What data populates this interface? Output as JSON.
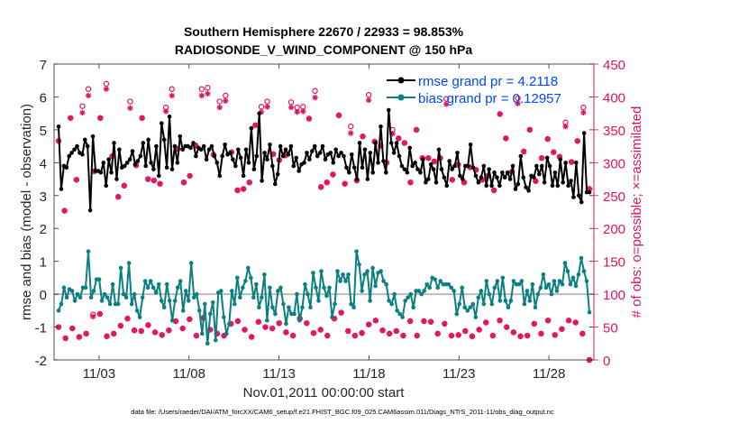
{
  "chart_data": {
    "type": "line",
    "title_line1": "Southern Hemisphere 22670 / 22933 = 98.853%",
    "title_line2": "RADIOSONDE_V_WIND_COMPONENT @ 150 hPa",
    "xlabel": "Nov.01,2011 00:00:00 start",
    "ylabel_left": "rmse and bias (model - observation)",
    "ylabel_right": "# of obs: o=possible; ×=assimilated",
    "footnote": "data file: /Users/raeder/DAI/ATM_forcXX/CAM6_setup/f.e21.FHIST_BGC.f09_025.CAM6assim.011/Diags_NTrS_2011-11/obs_diag_output.nc",
    "xlim": [
      0.5,
      30.5
    ],
    "xticks": [
      3,
      8,
      13,
      18,
      23,
      28
    ],
    "xtick_labels": [
      "11/03",
      "11/08",
      "11/13",
      "11/18",
      "11/23",
      "11/28"
    ],
    "ylim_left": [
      -2,
      7
    ],
    "yticks_left": [
      -2,
      -1,
      0,
      1,
      2,
      3,
      4,
      5,
      6,
      7
    ],
    "ylim_right": [
      0,
      450
    ],
    "yticks_right": [
      0,
      50,
      100,
      150,
      200,
      250,
      300,
      350,
      400,
      450
    ],
    "legend": [
      {
        "label": "rmse grand pr = 4.2118",
        "color": "#000000"
      },
      {
        "label": "bias grand pr = 0.12957",
        "color": "#008080"
      }
    ],
    "colors": {
      "rmse": "#000000",
      "bias": "#0a8080",
      "obs": "#e0135e",
      "zero_line": "#bbbbbb",
      "legend_text": "#0047ff"
    },
    "rmse": [
      5.1,
      3.2,
      3.9,
      3.85,
      4.2,
      4.3,
      4.4,
      4.5,
      4.3,
      4.25,
      4.7,
      4.5,
      2.55,
      4.8,
      3.75,
      3.75,
      3.7,
      4.0,
      3.3,
      4.1,
      3.7,
      4.6,
      3.5,
      4.4,
      3.85,
      3.9,
      4.0,
      4.1,
      4.35,
      3.95,
      4.05,
      4.2,
      4.6,
      3.9,
      4.7,
      4.0,
      3.8,
      4.5,
      3.6,
      5.2,
      4.7,
      3.85,
      5.4,
      3.8,
      4.5,
      4.0,
      4.8,
      4.4,
      4.5,
      4.5,
      4.45,
      4.6,
      4.2,
      4.45,
      4.4,
      4.5,
      4.1,
      4.4,
      4.5,
      4.2,
      4.0,
      3.6,
      4.2,
      4.55,
      4.25,
      4.3,
      4.1,
      3.9,
      4.4,
      4.15,
      3.6,
      4.4,
      4.0,
      5.05,
      3.8,
      4.2,
      5.5,
      3.45,
      4.3,
      4.1,
      4.55,
      3.9,
      3.35,
      3.65,
      4.5,
      4.2,
      4.4,
      4.25,
      4.5,
      3.9,
      4.15,
      3.75,
      3.95,
      4.0,
      4.3,
      4.1,
      4.35,
      4.5,
      4.2,
      4.3,
      4.5,
      4.1,
      4.25,
      4.3,
      4.0,
      4.4,
      4.2,
      4.3,
      4.2,
      3.85,
      3.7,
      4.25,
      3.85,
      3.5,
      4.6,
      3.85,
      4.4,
      3.5,
      4.3,
      3.7,
      4.6,
      4.0,
      5.1,
      4.05,
      3.7,
      5.6,
      4.6,
      4.3,
      4.6,
      4.2,
      3.9,
      3.8,
      3.7,
      4.45,
      3.9,
      4.0,
      3.8,
      3.7,
      4.1,
      3.4,
      3.5,
      3.95,
      3.8,
      3.4,
      4.4,
      3.8,
      3.55,
      3.3,
      4.05,
      3.8,
      3.9,
      4.3,
      3.6,
      3.5,
      3.9,
      3.9,
      4.55,
      3.85,
      3.6,
      3.4,
      3.55,
      3.9,
      3.3,
      3.8,
      3.3,
      3.7,
      3.55,
      3.3,
      3.7,
      3.55,
      3.7,
      3.5,
      3.9,
      3.2,
      3.35,
      4.2,
      3.55,
      3.25,
      3.15,
      3.6,
      3.55,
      3.9,
      3.65,
      3.9,
      3.4,
      4.15,
      3.9,
      3.3,
      3.7,
      3.3,
      4.1,
      3.4,
      4.0,
      3.3,
      3.45,
      2.95,
      4.0,
      3.0,
      2.8,
      4.9,
      3.1,
      3.1
    ],
    "bias": [
      -0.5,
      -0.3,
      0.2,
      -0.1,
      0.15,
      0.1,
      -0.2,
      0.0,
      -0.1,
      0.2,
      0.2,
      1.3,
      -0.1,
      0.1,
      0.45,
      0.45,
      -0.2,
      0.0,
      -0.1,
      -0.3,
      0.3,
      -0.3,
      -0.3,
      0.8,
      0.0,
      -0.1,
      0.95,
      -0.3,
      0.0,
      -0.5,
      -0.7,
      -0.1,
      0.4,
      0.2,
      0.4,
      0.2,
      0.05,
      0.3,
      -0.2,
      -0.4,
      0.3,
      -0.2,
      -0.8,
      -0.2,
      0.2,
      0.4,
      -0.5,
      0.1,
      -0.2,
      0.95,
      -0.1,
      0.0,
      -0.5,
      -1.2,
      -0.3,
      -1.5,
      -0.6,
      -0.25,
      -1.4,
      0.05,
      0.1,
      -0.7,
      -1.2,
      -0.9,
      0.1,
      -0.3,
      0.5,
      -0.1,
      0.2,
      0.4,
      0.8,
      0.5,
      -0.1,
      0.3,
      -0.4,
      -0.1,
      0.6,
      -0.8,
      0.2,
      -0.4,
      -0.6,
      0.1,
      0.2,
      -0.3,
      -0.9,
      -0.4,
      -0.6,
      -0.6,
      0.0,
      -0.8,
      -0.4,
      0.3,
      0.0,
      -0.4,
      0.65,
      0.2,
      -0.2,
      0.7,
      0.2,
      -0.05,
      0.2,
      -0.7,
      -0.3,
      0.7,
      0.4,
      0.6,
      0.4,
      0.6,
      -0.3,
      -0.4,
      1.3,
      0.9,
      0.1,
      0.6,
      0.7,
      -0.2,
      0.8,
      0.25,
      0.65,
      0.7,
      0.4,
      0.3,
      -0.2,
      -0.3,
      0.0,
      -0.5,
      -0.6,
      -0.7,
      -0.2,
      -0.1,
      0.0,
      -0.4,
      0.1,
      0.1,
      0.0,
      0.1,
      0.3,
      0.2,
      0.5,
      0.45,
      0.2,
      0.4,
      0.3,
      0.3,
      0.3,
      0.2,
      0.1,
      -0.6,
      -0.3,
      0.2,
      -0.4,
      -0.5,
      -0.4,
      -0.3,
      -0.7,
      -0.1,
      0.1,
      -0.3,
      0.4,
      0.0,
      -0.3,
      0.2,
      0.4,
      -0.2,
      0.5,
      -0.2,
      -0.4,
      -0.2,
      0.4,
      0.3,
      0.3,
      0.4,
      -0.3,
      0.1,
      -0.2,
      0.3,
      -0.4,
      0.0,
      0.2,
      0.6,
      0.2,
      0.3,
      0.0,
      0.4,
      0.1,
      0.4,
      0.3,
      0.95,
      0.7,
      0.3,
      0.5,
      0.25,
      0.6,
      1.1,
      0.7,
      0.4,
      -0.55
    ],
    "obs_possible": [
      333,
      227,
      368,
      274,
      386,
      412,
      287,
      368,
      420,
      310,
      248,
      265,
      393,
      296,
      368,
      275,
      273,
      268,
      384,
      412,
      321,
      270,
      280,
      326,
      412,
      414,
      312,
      393,
      402,
      316,
      258,
      260,
      270,
      357,
      385,
      393,
      313,
      304,
      311,
      392,
      384,
      385,
      367,
      409,
      263,
      270,
      282,
      372,
      268,
      355,
      273,
      340,
      403,
      332,
      326,
      300,
      350,
      337,
      330,
      270,
      350,
      307,
      307,
      302,
      307,
      397,
      274,
      297,
      270,
      293,
      289,
      274,
      280,
      258,
      374,
      337,
      286,
      398,
      317,
      350,
      272,
      307,
      336,
      316,
      309,
      361,
      301,
      333,
      384,
      260
    ],
    "obs_assimilated": [
      333,
      227,
      368,
      274,
      376,
      402,
      287,
      368,
      412,
      310,
      248,
      265,
      383,
      296,
      368,
      275,
      273,
      268,
      378,
      402,
      321,
      270,
      280,
      326,
      402,
      405,
      312,
      384,
      394,
      316,
      258,
      260,
      270,
      357,
      377,
      385,
      313,
      304,
      311,
      384,
      377,
      378,
      367,
      399,
      263,
      270,
      282,
      372,
      268,
      345,
      273,
      340,
      395,
      332,
      326,
      300,
      344,
      337,
      330,
      270,
      350,
      307,
      307,
      302,
      307,
      389,
      274,
      297,
      270,
      293,
      289,
      274,
      280,
      258,
      374,
      337,
      286,
      390,
      317,
      350,
      272,
      307,
      336,
      316,
      309,
      355,
      301,
      333,
      376,
      260
    ],
    "obs_low_possible": [
      50,
      33,
      48,
      35,
      40,
      69,
      70,
      36,
      40,
      52,
      63,
      45,
      44,
      53,
      42,
      38,
      45,
      59,
      48,
      62,
      37,
      64,
      46,
      40,
      37,
      55,
      59,
      46,
      35,
      58,
      50,
      48,
      56,
      42,
      37,
      63,
      56,
      41,
      46,
      37,
      63,
      72,
      44,
      37,
      41,
      54,
      60,
      45,
      40,
      44,
      37,
      59,
      37,
      59,
      58,
      40,
      55,
      37,
      38,
      44,
      36,
      46,
      57,
      37,
      60,
      50,
      42,
      36,
      37,
      55,
      40,
      60,
      38,
      47,
      60,
      57,
      40,
      0
    ],
    "obs_low_assimilated": [
      50,
      33,
      48,
      35,
      40,
      66,
      70,
      36,
      40,
      52,
      63,
      45,
      44,
      53,
      42,
      38,
      45,
      59,
      48,
      62,
      37,
      64,
      46,
      40,
      37,
      55,
      59,
      46,
      35,
      58,
      50,
      48,
      56,
      42,
      37,
      63,
      56,
      41,
      46,
      37,
      63,
      72,
      44,
      37,
      41,
      54,
      60,
      45,
      40,
      44,
      37,
      59,
      37,
      59,
      58,
      40,
      55,
      37,
      38,
      44,
      36,
      46,
      57,
      37,
      60,
      50,
      42,
      36,
      37,
      55,
      40,
      60,
      38,
      47,
      60,
      57,
      40,
      0
    ]
  }
}
